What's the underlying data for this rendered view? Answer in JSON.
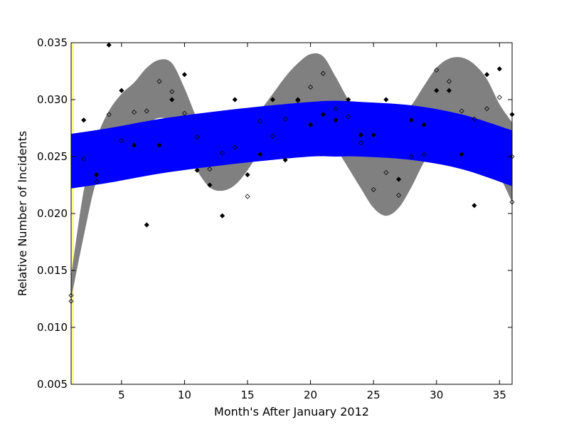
{
  "chart_data": {
    "type": "scatter",
    "title": "",
    "xlabel": "Month's After January 2012",
    "ylabel": "Relative Number of Incidents",
    "xlim": [
      1,
      36
    ],
    "ylim": [
      0.005,
      0.035
    ],
    "xticks": [
      5,
      10,
      15,
      20,
      25,
      30,
      35
    ],
    "yticks": [
      0.005,
      0.01,
      0.015,
      0.02,
      0.025,
      0.03,
      0.035
    ],
    "ytick_labels": [
      "0.005",
      "0.010",
      "0.015",
      "0.020",
      "0.025",
      "0.030",
      "0.035"
    ],
    "grid": false,
    "legend": "none",
    "colors": {
      "filled_points": "#000000",
      "open_points": "#000000",
      "seasonal_band": "#808080",
      "trend_band": "#0000ff",
      "highlight_stripe": "#ffff80"
    },
    "seasonal_band": {
      "x": [
        1,
        2,
        3,
        4,
        5,
        6,
        7,
        8,
        9,
        10,
        11,
        12,
        13,
        14,
        15,
        16,
        17,
        18,
        19,
        20,
        21,
        22,
        23,
        24,
        25,
        26,
        27,
        28,
        29,
        30,
        31,
        32,
        33,
        34,
        35,
        36
      ],
      "upper": [
        0.0145,
        0.022,
        0.0265,
        0.029,
        0.0305,
        0.0315,
        0.0328,
        0.0335,
        0.0332,
        0.031,
        0.0283,
        0.0262,
        0.0255,
        0.026,
        0.0275,
        0.029,
        0.0305,
        0.032,
        0.0332,
        0.034,
        0.0338,
        0.032,
        0.03,
        0.0285,
        0.0275,
        0.0275,
        0.0285,
        0.0295,
        0.0312,
        0.0328,
        0.0336,
        0.0337,
        0.0331,
        0.0318,
        0.0296,
        0.028
      ],
      "lower": [
        0.0125,
        0.018,
        0.0228,
        0.0242,
        0.0256,
        0.0268,
        0.0278,
        0.0284,
        0.028,
        0.0262,
        0.0238,
        0.0223,
        0.022,
        0.0225,
        0.0238,
        0.0255,
        0.027,
        0.0282,
        0.029,
        0.0288,
        0.0275,
        0.0258,
        0.024,
        0.0222,
        0.0205,
        0.0198,
        0.0205,
        0.0223,
        0.0245,
        0.0262,
        0.0273,
        0.0275,
        0.0267,
        0.0252,
        0.0233,
        0.021
      ]
    },
    "trend_band": {
      "x": [
        1,
        4,
        8,
        12,
        16,
        20,
        22,
        24,
        28,
        32,
        36
      ],
      "upper": [
        0.027,
        0.0275,
        0.0283,
        0.0289,
        0.0294,
        0.0298,
        0.0299,
        0.0298,
        0.0295,
        0.0287,
        0.0273
      ],
      "lower": [
        0.0222,
        0.0227,
        0.0235,
        0.0241,
        0.0246,
        0.025,
        0.025,
        0.025,
        0.0247,
        0.0239,
        0.0224
      ]
    },
    "series": [
      {
        "marker": "filled",
        "points": [
          [
            2,
            0.0282
          ],
          [
            3,
            0.0234
          ],
          [
            4,
            0.0348
          ],
          [
            5,
            0.0308
          ],
          [
            6,
            0.026
          ],
          [
            7,
            0.019
          ],
          [
            8,
            0.026
          ],
          [
            9,
            0.03
          ],
          [
            10,
            0.0322
          ],
          [
            11,
            0.0238
          ],
          [
            12,
            0.0225
          ],
          [
            13,
            0.0198
          ],
          [
            14,
            0.03
          ],
          [
            15,
            0.0234
          ],
          [
            16,
            0.0252
          ],
          [
            17,
            0.03
          ],
          [
            18,
            0.0247
          ],
          [
            19,
            0.03
          ],
          [
            20,
            0.0278
          ],
          [
            21,
            0.0287
          ],
          [
            22,
            0.0282
          ],
          [
            23,
            0.03
          ],
          [
            24,
            0.0269
          ],
          [
            25,
            0.0269
          ],
          [
            26,
            0.03
          ],
          [
            27,
            0.023
          ],
          [
            28,
            0.0282
          ],
          [
            29,
            0.0278
          ],
          [
            30,
            0.0308
          ],
          [
            31,
            0.0308
          ],
          [
            32,
            0.0252
          ],
          [
            33,
            0.0207
          ],
          [
            34,
            0.0322
          ],
          [
            35,
            0.0327
          ],
          [
            36,
            0.0287
          ]
        ]
      },
      {
        "marker": "open",
        "points": [
          [
            1,
            0.0128
          ],
          [
            1,
            0.0123
          ],
          [
            2,
            0.0248
          ],
          [
            3,
            0.0228
          ],
          [
            4,
            0.0287
          ],
          [
            5,
            0.0264
          ],
          [
            6,
            0.0289
          ],
          [
            7,
            0.029
          ],
          [
            8,
            0.0316
          ],
          [
            9,
            0.0307
          ],
          [
            10,
            0.0288
          ],
          [
            11,
            0.0267
          ],
          [
            12,
            0.0239
          ],
          [
            13,
            0.0253
          ],
          [
            14,
            0.0258
          ],
          [
            15,
            0.0215
          ],
          [
            16,
            0.0281
          ],
          [
            17,
            0.0268
          ],
          [
            18,
            0.0283
          ],
          [
            19,
            0.0299
          ],
          [
            20,
            0.0311
          ],
          [
            21,
            0.0323
          ],
          [
            22,
            0.0292
          ],
          [
            23,
            0.0285
          ],
          [
            24,
            0.0262
          ],
          [
            25,
            0.0221
          ],
          [
            26,
            0.0236
          ],
          [
            27,
            0.0216
          ],
          [
            28,
            0.025
          ],
          [
            29,
            0.0252
          ],
          [
            30,
            0.0326
          ],
          [
            31,
            0.0316
          ],
          [
            32,
            0.029
          ],
          [
            33,
            0.0283
          ],
          [
            34,
            0.0292
          ],
          [
            35,
            0.0302
          ],
          [
            36,
            0.025
          ],
          [
            36,
            0.021
          ]
        ]
      }
    ]
  }
}
